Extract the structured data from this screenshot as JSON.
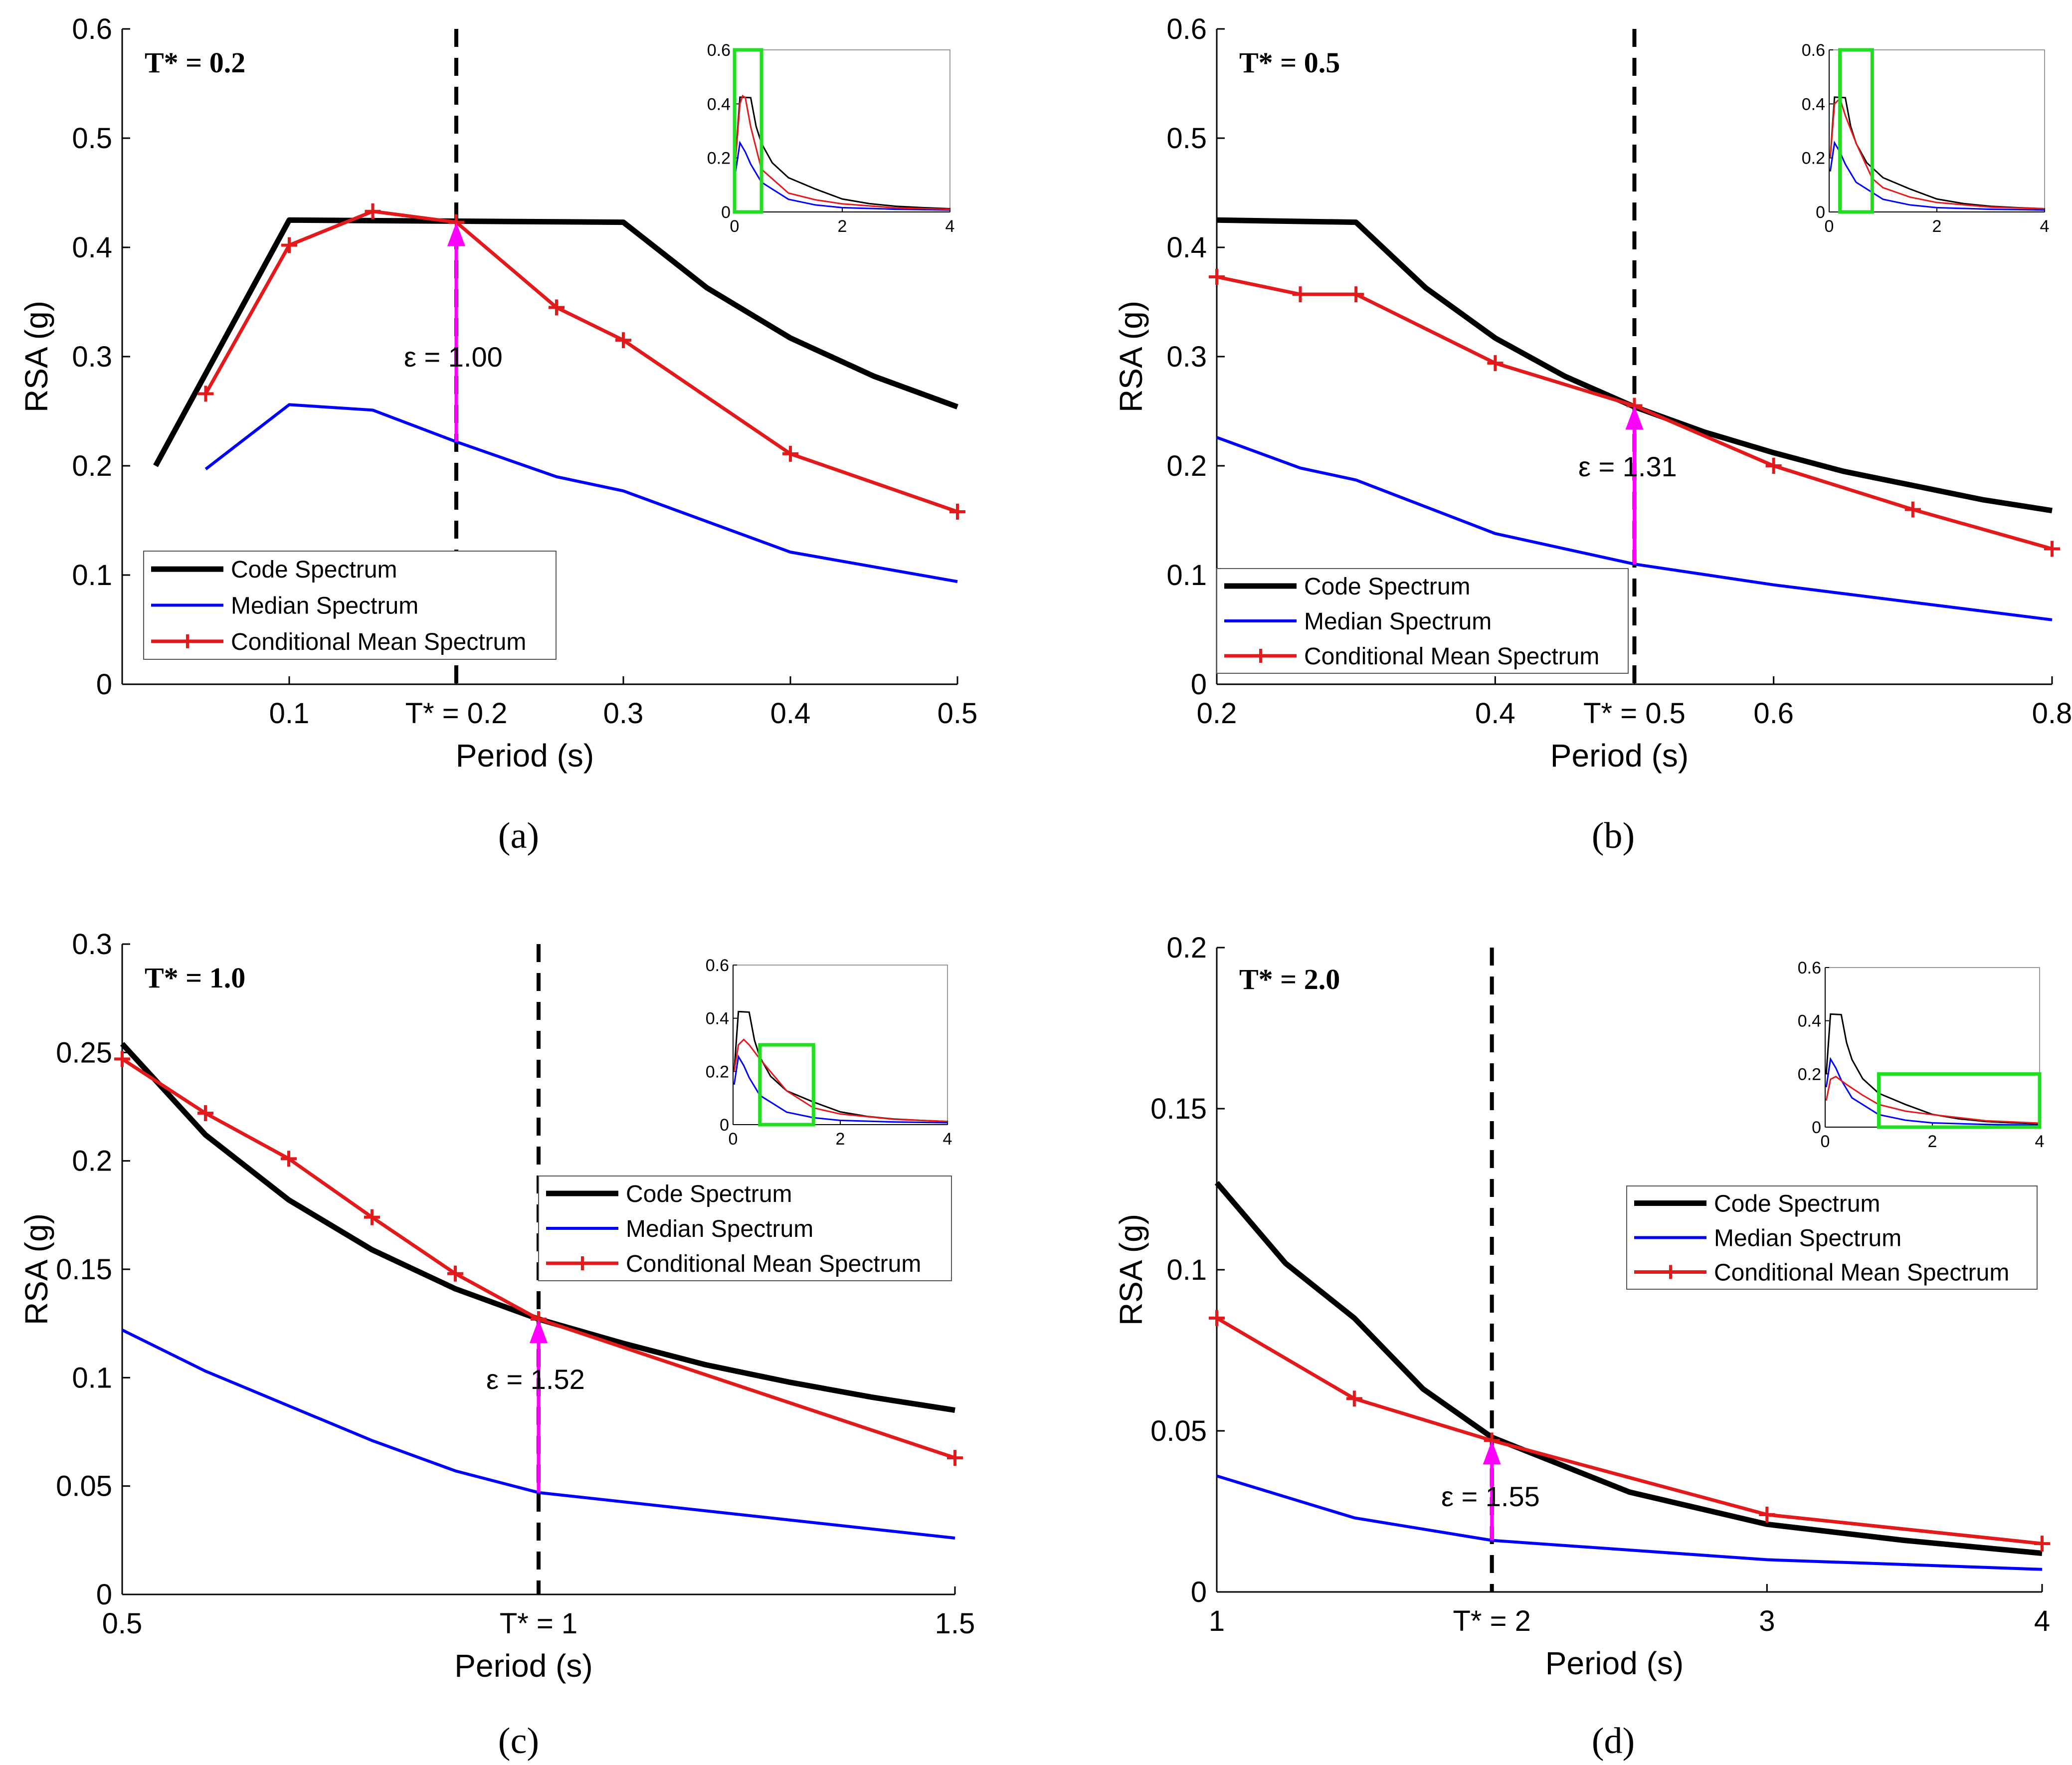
{
  "figure": {
    "panels": [
      {
        "id": "a",
        "label": "(a)",
        "tstar_label": "T* = 0.2",
        "epsilon_label": "ε = 1.00"
      },
      {
        "id": "b",
        "label": "(b)",
        "tstar_label": "T* = 0.5",
        "epsilon_label": "ε = 1.31"
      },
      {
        "id": "c",
        "label": "(c)",
        "tstar_label": "T* = 1.0",
        "epsilon_label": "ε = 1.52"
      },
      {
        "id": "d",
        "label": "(d)",
        "tstar_label": "T* = 2.0",
        "epsilon_label": "ε = 1.55"
      }
    ],
    "legend": [
      "Code Spectrum",
      "Median Spectrum",
      "Conditional Mean Spectrum"
    ],
    "colors": {
      "code": "#000000",
      "median": "#0000ff",
      "cms": "#e31a1c",
      "arrow": "#ff00ff",
      "highlight": "#22dd22"
    }
  },
  "chart_data": [
    {
      "type": "line",
      "panel": "a",
      "xlabel": "Period (s)",
      "ylabel": "RSA (g)",
      "xlim": [
        0.0,
        0.5
      ],
      "ylim": [
        0,
        0.6
      ],
      "xticks": [
        0.1,
        0.2,
        0.3,
        0.4,
        0.5
      ],
      "xtick_labels": [
        "0.1",
        "T* = 0.2",
        "0.3",
        "0.4",
        "0.5"
      ],
      "yticks": [
        0,
        0.1,
        0.2,
        0.3,
        0.4,
        0.5,
        0.6
      ],
      "ytick_labels": [
        "0",
        "0.1",
        "0.2",
        "0.3",
        "0.4",
        "0.5",
        "0.6"
      ],
      "tstar": 0.2,
      "epsilon": 1.0,
      "arrow": {
        "x": 0.2,
        "y_from": 0.222,
        "y_to": 0.423
      },
      "legend_position": "bottom-left",
      "series": [
        {
          "name": "Code Spectrum",
          "x": [
            0.02,
            0.1,
            0.3,
            0.35,
            0.4,
            0.45,
            0.5
          ],
          "values": [
            0.2,
            0.425,
            0.423,
            0.363,
            0.317,
            0.282,
            0.254
          ]
        },
        {
          "name": "Median Spectrum",
          "x": [
            0.05,
            0.1,
            0.15,
            0.2,
            0.26,
            0.3,
            0.4,
            0.5
          ],
          "values": [
            0.197,
            0.256,
            0.251,
            0.222,
            0.19,
            0.177,
            0.121,
            0.094
          ]
        },
        {
          "name": "Conditional Mean Spectrum",
          "x": [
            0.05,
            0.1,
            0.15,
            0.2,
            0.26,
            0.3,
            0.4,
            0.5
          ],
          "values": [
            0.266,
            0.402,
            0.433,
            0.423,
            0.345,
            0.315,
            0.211,
            0.158
          ]
        }
      ],
      "inset": {
        "xlim": [
          0,
          4
        ],
        "ylim": [
          0,
          0.6
        ],
        "xticks": [
          0,
          2,
          4
        ],
        "yticks": [
          0,
          0.2,
          0.4,
          0.6
        ],
        "xtick_labels": [
          "0",
          "2",
          "4"
        ],
        "ytick_labels": [
          "0",
          "0.2",
          "0.4",
          "0.6"
        ],
        "highlight_x": [
          0.0,
          0.5
        ],
        "highlight_y": [
          0,
          0.6
        ]
      }
    },
    {
      "type": "line",
      "panel": "b",
      "xlabel": "Period (s)",
      "ylabel": "RSA (g)",
      "xlim": [
        0.2,
        0.8
      ],
      "ylim": [
        0,
        0.6
      ],
      "xticks": [
        0.2,
        0.4,
        0.5,
        0.6,
        0.8
      ],
      "xtick_labels": [
        "0.2",
        "0.4",
        "T* = 0.5",
        "0.6",
        "0.8"
      ],
      "yticks": [
        0,
        0.1,
        0.2,
        0.3,
        0.4,
        0.5,
        0.6
      ],
      "ytick_labels": [
        "0",
        "0.1",
        "0.2",
        "0.3",
        "0.4",
        "0.5",
        "0.6"
      ],
      "tstar": 0.5,
      "epsilon": 1.31,
      "arrow": {
        "x": 0.5,
        "y_from": 0.11,
        "y_to": 0.255
      },
      "legend_position": "bottom-left",
      "series": [
        {
          "name": "Code Spectrum",
          "x": [
            0.2,
            0.3,
            0.35,
            0.4,
            0.45,
            0.5,
            0.55,
            0.6,
            0.65,
            0.7,
            0.75,
            0.8
          ],
          "values": [
            0.425,
            0.423,
            0.363,
            0.317,
            0.282,
            0.254,
            0.231,
            0.212,
            0.195,
            0.182,
            0.169,
            0.159
          ]
        },
        {
          "name": "Median Spectrum",
          "x": [
            0.2,
            0.26,
            0.3,
            0.4,
            0.5,
            0.6,
            0.7,
            0.8
          ],
          "values": [
            0.226,
            0.198,
            0.187,
            0.138,
            0.11,
            0.091,
            0.075,
            0.059
          ]
        },
        {
          "name": "Conditional Mean Spectrum",
          "x": [
            0.2,
            0.26,
            0.3,
            0.4,
            0.5,
            0.6,
            0.7,
            0.8
          ],
          "values": [
            0.373,
            0.357,
            0.357,
            0.294,
            0.255,
            0.2,
            0.16,
            0.124
          ]
        }
      ],
      "inset": {
        "xlim": [
          0,
          4
        ],
        "ylim": [
          0,
          0.6
        ],
        "xticks": [
          0,
          2,
          4
        ],
        "yticks": [
          0,
          0.2,
          0.4,
          0.6
        ],
        "xtick_labels": [
          "0",
          "2",
          "4"
        ],
        "ytick_labels": [
          "0",
          "0.2",
          "0.4",
          "0.6"
        ],
        "highlight_x": [
          0.2,
          0.8
        ],
        "highlight_y": [
          0,
          0.6
        ]
      }
    },
    {
      "type": "line",
      "panel": "c",
      "xlabel": "Period (s)",
      "ylabel": "RSA (g)",
      "xlim": [
        0.5,
        1.5
      ],
      "ylim": [
        0,
        0.3
      ],
      "xticks": [
        0.5,
        1.0,
        1.5
      ],
      "xtick_labels": [
        "0.5",
        "T* = 1",
        "1.5"
      ],
      "yticks": [
        0,
        0.05,
        0.1,
        0.15,
        0.2,
        0.25,
        0.3
      ],
      "ytick_labels": [
        "0",
        "0.05",
        "0.1",
        "0.15",
        "0.2",
        "0.25",
        "0.3"
      ],
      "tstar": 1.0,
      "epsilon": 1.52,
      "arrow": {
        "x": 1.0,
        "y_from": 0.047,
        "y_to": 0.127
      },
      "legend_position": "upper-right",
      "series": [
        {
          "name": "Code Spectrum",
          "x": [
            0.5,
            0.6,
            0.7,
            0.8,
            0.9,
            1.0,
            1.1,
            1.2,
            1.3,
            1.4,
            1.5
          ],
          "values": [
            0.254,
            0.212,
            0.182,
            0.159,
            0.141,
            0.127,
            0.116,
            0.106,
            0.098,
            0.091,
            0.085
          ]
        },
        {
          "name": "Median Spectrum",
          "x": [
            0.5,
            0.6,
            0.7,
            0.8,
            0.9,
            1.0,
            1.5
          ],
          "values": [
            0.122,
            0.103,
            0.087,
            0.071,
            0.057,
            0.047,
            0.026
          ]
        },
        {
          "name": "Conditional Mean Spectrum",
          "x": [
            0.5,
            0.6,
            0.7,
            0.8,
            0.9,
            1.0,
            1.5
          ],
          "values": [
            0.247,
            0.222,
            0.201,
            0.174,
            0.148,
            0.127,
            0.063
          ]
        }
      ],
      "inset": {
        "xlim": [
          0,
          4
        ],
        "ylim": [
          0,
          0.6
        ],
        "xticks": [
          0,
          2,
          4
        ],
        "yticks": [
          0,
          0.2,
          0.4,
          0.6
        ],
        "xtick_labels": [
          "0",
          "2",
          "4"
        ],
        "ytick_labels": [
          "0",
          "0.2",
          "0.4",
          "0.6"
        ],
        "highlight_x": [
          0.5,
          1.5
        ],
        "highlight_y": [
          0,
          0.3
        ]
      }
    },
    {
      "type": "line",
      "panel": "d",
      "xlabel": "Period (s)",
      "ylabel": "RSA (g)",
      "xlim": [
        1,
        4
      ],
      "ylim": [
        0,
        0.2
      ],
      "xticks": [
        1,
        2,
        3,
        4
      ],
      "xtick_labels": [
        "1",
        "T* = 2",
        "3",
        "4"
      ],
      "yticks": [
        0,
        0.05,
        0.1,
        0.15,
        0.2
      ],
      "ytick_labels": [
        "0",
        "0.05",
        "0.1",
        "0.15",
        "0.2"
      ],
      "tstar": 2.0,
      "epsilon": 1.55,
      "arrow": {
        "x": 2.0,
        "y_from": 0.016,
        "y_to": 0.047
      },
      "legend_position": "upper-right",
      "series": [
        {
          "name": "Code Spectrum",
          "x": [
            1.0,
            1.25,
            1.5,
            1.75,
            2.0,
            2.5,
            3.0,
            3.5,
            4.0
          ],
          "values": [
            0.127,
            0.102,
            0.085,
            0.063,
            0.048,
            0.031,
            0.021,
            0.016,
            0.012
          ]
        },
        {
          "name": "Median Spectrum",
          "x": [
            1.0,
            1.5,
            2.0,
            3.0,
            4.0
          ],
          "values": [
            0.036,
            0.023,
            0.016,
            0.01,
            0.007
          ]
        },
        {
          "name": "Conditional Mean Spectrum",
          "x": [
            1.0,
            1.5,
            2.0,
            3.0,
            4.0
          ],
          "values": [
            0.085,
            0.06,
            0.047,
            0.024,
            0.015
          ]
        }
      ],
      "inset": {
        "xlim": [
          0,
          4
        ],
        "ylim": [
          0,
          0.6
        ],
        "xticks": [
          0,
          2,
          4
        ],
        "yticks": [
          0,
          0.2,
          0.4,
          0.6
        ],
        "xtick_labels": [
          "0",
          "2",
          "4"
        ],
        "ytick_labels": [
          "0",
          "0.2",
          "0.4",
          "0.6"
        ],
        "highlight_x": [
          1.0,
          4.0
        ],
        "highlight_y": [
          0,
          0.2
        ]
      }
    }
  ],
  "inset_curves": {
    "code": {
      "x": [
        0.02,
        0.1,
        0.3,
        0.4,
        0.5,
        0.7,
        1.0,
        1.5,
        2.0,
        2.5,
        3.0,
        3.5,
        4.0
      ],
      "values": [
        0.2,
        0.425,
        0.423,
        0.317,
        0.254,
        0.182,
        0.127,
        0.085,
        0.048,
        0.031,
        0.021,
        0.016,
        0.012
      ]
    },
    "median": {
      "x": [
        0.02,
        0.1,
        0.2,
        0.3,
        0.5,
        1.0,
        1.5,
        2.0,
        3.0,
        4.0
      ],
      "values": [
        0.15,
        0.256,
        0.222,
        0.177,
        0.11,
        0.047,
        0.026,
        0.016,
        0.01,
        0.007
      ]
    },
    "cms_a": {
      "x": [
        0.02,
        0.1,
        0.15,
        0.2,
        0.3,
        0.5,
        1.0,
        1.5,
        2.0,
        3.0,
        4.0
      ],
      "values": [
        0.2,
        0.4,
        0.43,
        0.423,
        0.315,
        0.158,
        0.07,
        0.045,
        0.03,
        0.015,
        0.01
      ]
    },
    "cms_b": {
      "x": [
        0.02,
        0.1,
        0.2,
        0.3,
        0.5,
        0.8,
        1.0,
        1.5,
        2.0,
        3.0,
        4.0
      ],
      "values": [
        0.2,
        0.4,
        0.42,
        0.357,
        0.255,
        0.124,
        0.09,
        0.055,
        0.035,
        0.018,
        0.012
      ]
    },
    "cms_c": {
      "x": [
        0.02,
        0.1,
        0.2,
        0.3,
        0.5,
        1.0,
        1.5,
        2.0,
        3.0,
        4.0
      ],
      "values": [
        0.2,
        0.3,
        0.32,
        0.3,
        0.247,
        0.127,
        0.063,
        0.04,
        0.02,
        0.012
      ]
    },
    "cms_d": {
      "x": [
        0.02,
        0.1,
        0.2,
        0.4,
        0.7,
        1.0,
        1.5,
        2.0,
        3.0,
        4.0
      ],
      "values": [
        0.1,
        0.18,
        0.19,
        0.16,
        0.12,
        0.085,
        0.06,
        0.047,
        0.024,
        0.015
      ]
    }
  }
}
